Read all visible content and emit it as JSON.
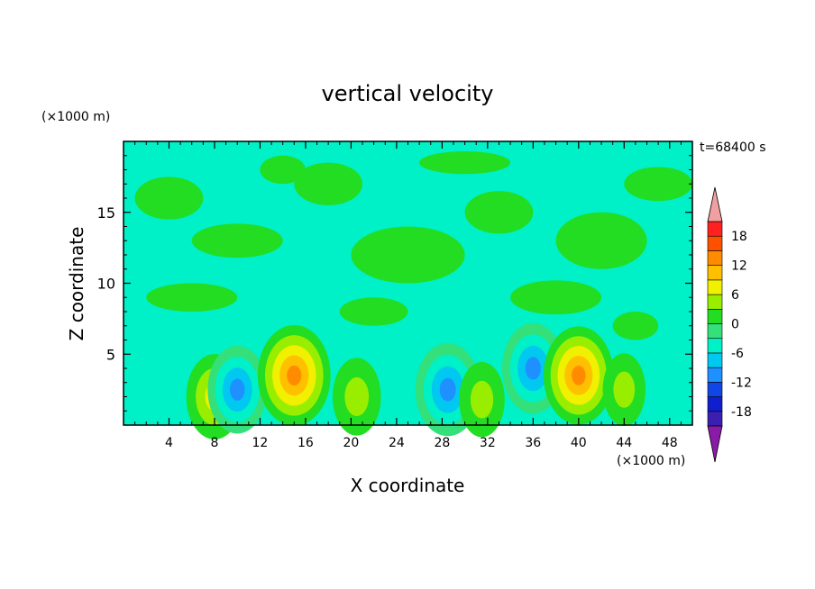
{
  "chart_data": {
    "type": "heatmap",
    "title": "vertical velocity",
    "xlabel": "X coordinate",
    "ylabel": "Z coordinate",
    "x_unit": "(×1000 m)",
    "y_unit": "(×1000 m)",
    "time_label": "t=68400 s",
    "xlim": [
      0,
      50
    ],
    "ylim": [
      0,
      20
    ],
    "x_ticks": [
      4,
      8,
      12,
      16,
      20,
      24,
      28,
      32,
      36,
      40,
      44,
      48
    ],
    "y_ticks": [
      5,
      10,
      15
    ],
    "colorbar": {
      "ticks": [
        "18",
        "12",
        "6",
        "0",
        "-6",
        "-12",
        "-18"
      ],
      "levels": [
        -21,
        -18,
        -15,
        -12,
        -9,
        -6,
        -3,
        0,
        3,
        6,
        9,
        12,
        15,
        18,
        21
      ],
      "colors": [
        "#7a1fa0",
        "#3a1fb0",
        "#0f1fd0",
        "#1046e6",
        "#1e90ff",
        "#00c8f0",
        "#00f0c8",
        "#33e07a",
        "#22dd22",
        "#99ee00",
        "#f0f000",
        "#ffc000",
        "#ff8c00",
        "#ff5000",
        "#ff2020",
        "#f0a0a0"
      ],
      "over_color": "#f0a0a0",
      "under_color": "#8a1aa8"
    },
    "features": [
      {
        "x": 8.0,
        "z": 2.0,
        "value": 9
      },
      {
        "x": 10.0,
        "z": 2.5,
        "value": -10
      },
      {
        "x": 15.0,
        "z": 3.5,
        "value": 15
      },
      {
        "x": 20.5,
        "z": 2.0,
        "value": 6
      },
      {
        "x": 28.5,
        "z": 2.5,
        "value": -12
      },
      {
        "x": 31.5,
        "z": 1.8,
        "value": 5
      },
      {
        "x": 36.0,
        "z": 4.0,
        "value": -11
      },
      {
        "x": 40.0,
        "z": 3.5,
        "value": 14
      },
      {
        "x": 44.0,
        "z": 2.5,
        "value": 4
      }
    ]
  }
}
